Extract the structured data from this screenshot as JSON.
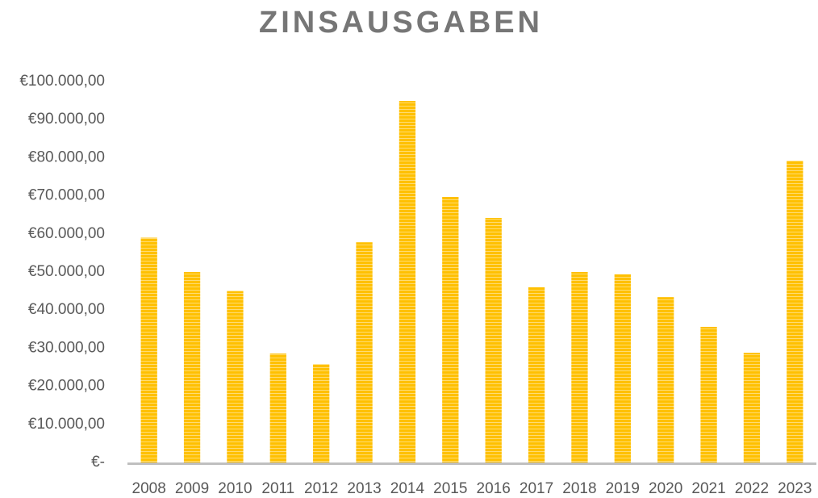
{
  "chart_data": {
    "type": "bar",
    "title": "ZINSAUSGABEN",
    "categories": [
      "2008",
      "2009",
      "2010",
      "2011",
      "2012",
      "2013",
      "2014",
      "2015",
      "2016",
      "2017",
      "2018",
      "2019",
      "2020",
      "2021",
      "2022",
      "2023"
    ],
    "values": [
      59000,
      50000,
      45000,
      28600,
      25800,
      57800,
      94900,
      69700,
      64200,
      46000,
      50000,
      49400,
      43400,
      35600,
      28800,
      79200
    ],
    "color": "#FFC000",
    "ylim": [
      0,
      100000
    ],
    "yticks": [
      {
        "value": 0,
        "label": "€-"
      },
      {
        "value": 10000,
        "label": "€10.000,00"
      },
      {
        "value": 20000,
        "label": "€20.000,00"
      },
      {
        "value": 30000,
        "label": "€30.000,00"
      },
      {
        "value": 40000,
        "label": "€40.000,00"
      },
      {
        "value": 50000,
        "label": "€50.000,00"
      },
      {
        "value": 60000,
        "label": "€60.000,00"
      },
      {
        "value": 70000,
        "label": "€70.000,00"
      },
      {
        "value": 80000,
        "label": "€80.000,00"
      },
      {
        "value": 90000,
        "label": "€90.000,00"
      },
      {
        "value": 100000,
        "label": "€100.000,00"
      }
    ],
    "grid": false
  }
}
